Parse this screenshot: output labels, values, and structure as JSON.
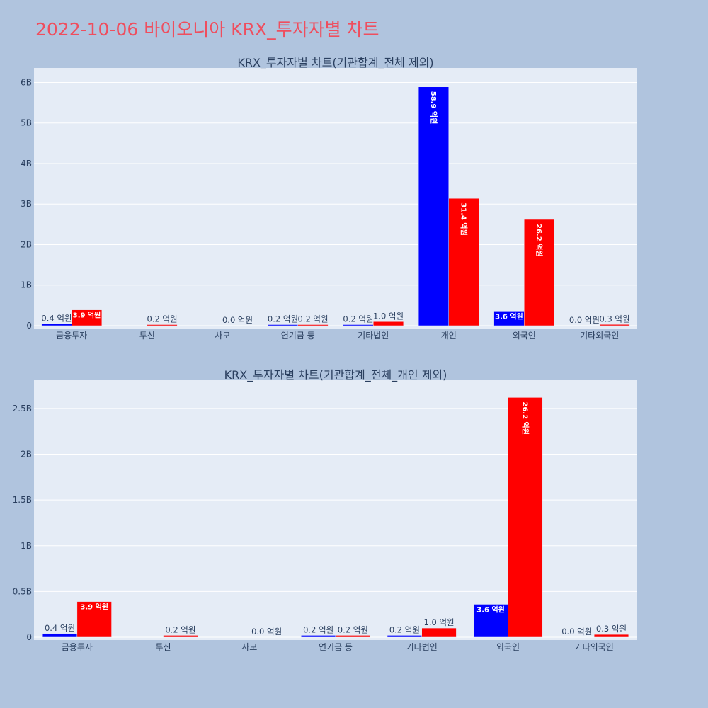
{
  "title": "2022-10-06 바이오니아 KRX_투자자별 차트",
  "colors": {
    "page_background": "#b0c4de",
    "plot_background": "#e5ecf6",
    "title": "#ef4e5e",
    "series_1": "#0000ff",
    "series_2": "#ff0000"
  },
  "chart_data": [
    {
      "type": "bar",
      "title": "KRX_투자자별 차트(기관합계_전체 제외)",
      "categories": [
        "금융투자",
        "투신",
        "사모",
        "연기금 등",
        "기타법인",
        "개인",
        "외국인",
        "기타외국인"
      ],
      "series": [
        {
          "values": [
            40000000,
            0,
            0,
            20000000,
            20000000,
            5890000000,
            360000000,
            0
          ],
          "labels": [
            "0.4 억원",
            "",
            "",
            "0.2 억원",
            "0.2 억원",
            "58.9 억원",
            "3.6 억원",
            "0.0 억원"
          ]
        },
        {
          "values": [
            390000000,
            20000000,
            0,
            20000000,
            100000000,
            3140000000,
            2620000000,
            30000000
          ],
          "labels": [
            "3.9 억원",
            "0.2 억원",
            "0.0 억원",
            "0.2 억원",
            "1.0 억원",
            "31.4 억원",
            "26.2 억원",
            "0.3 억원"
          ]
        }
      ],
      "yticks": [
        0,
        1000000000,
        2000000000,
        3000000000,
        4000000000,
        5000000000,
        6000000000
      ],
      "ytick_labels": [
        "0",
        "1B",
        "2B",
        "3B",
        "4B",
        "5B",
        "6B"
      ],
      "ylim": [
        0,
        6270000000
      ],
      "grid": true,
      "legend": "none"
    },
    {
      "type": "bar",
      "title": "KRX_투자자별 차트(기관합계_전체_개인 제외)",
      "categories": [
        "금융투자",
        "투신",
        "사모",
        "연기금 등",
        "기타법인",
        "외국인",
        "기타외국인"
      ],
      "series": [
        {
          "values": [
            40000000,
            0,
            0,
            20000000,
            20000000,
            360000000,
            0
          ],
          "labels": [
            "0.4 억원",
            "",
            "",
            "0.2 억원",
            "0.2 억원",
            "3.6 억원",
            "0.0 억원"
          ]
        },
        {
          "values": [
            390000000,
            20000000,
            0,
            20000000,
            100000000,
            2620000000,
            30000000
          ],
          "labels": [
            "3.9 억원",
            "0.2 억원",
            "0.0 억원",
            "0.2 억원",
            "1.0 억원",
            "26.2 억원",
            "0.3 억원"
          ]
        }
      ],
      "yticks": [
        0,
        500000000,
        1000000000,
        1500000000,
        2000000000,
        2500000000
      ],
      "ytick_labels": [
        "0",
        "0.5B",
        "1B",
        "1.5B",
        "2B",
        "2.5B"
      ],
      "ylim": [
        0,
        2770000000
      ],
      "grid": true,
      "legend": "none"
    }
  ]
}
